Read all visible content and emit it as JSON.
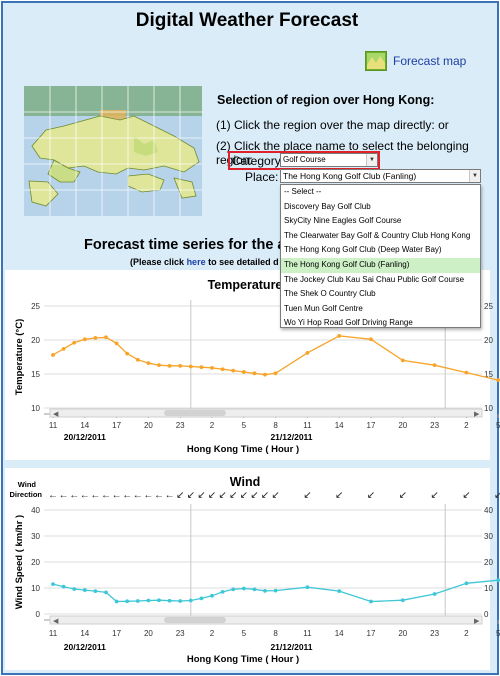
{
  "page": {
    "title": "Digital Weather Forecast",
    "forecast_map_label": "Forecast map"
  },
  "selection": {
    "heading": "Selection of region over Hong Kong:",
    "instruction_1": "(1) Click the region over the map directly: or",
    "instruction_2": "(2) Click the place name to select the belonging region:",
    "category_label": "Category:",
    "category_value": "Golf Course",
    "place_label": "Place:",
    "place_value": "The Hong Kong Golf Club (Fanling)",
    "place_options": [
      "-- Select --",
      "Discovery Bay Golf Club",
      "SkyCity Nine Eagles Golf Course",
      "The Clearwater Bay Golf & Country Club Hong Kong",
      "The Hong Kong Golf Club (Deep Water Bay)",
      "The Hong Kong Golf Club (Fanling)",
      "The Jockey Club Kau Sai Chau Public Golf Course",
      "The Shek O Country Club",
      "Tuen Mun Golf Centre",
      "Wo Yi Hop Road Golf Driving Range"
    ],
    "place_selected_index": 5
  },
  "section": {
    "title": "Forecast time series for the a",
    "note_before": "(Please click",
    "note_link": "here",
    "note_after": "to see detailed d"
  },
  "colors": {
    "temperature_series": "#f7a428",
    "wind_series": "#3ec7d6",
    "category_highlight": "#e0202a",
    "selected_option": "#cdf0c6"
  },
  "chart_data": [
    {
      "type": "line",
      "title": "Temperature",
      "ylabel": "Temperature (°C)",
      "xlabel": "Hong Kong Time ( Hour )",
      "ylim": [
        10,
        25
      ],
      "yticks": [
        10,
        15,
        20,
        25
      ],
      "grid": true,
      "x_tick_labels": [
        "11",
        "14",
        "17",
        "20",
        "23",
        "2",
        "5",
        "8",
        "11",
        "14",
        "17",
        "20",
        "23",
        "2",
        "5"
      ],
      "date_labels": [
        "20/12/2011",
        "21/12/2011"
      ],
      "series": [
        {
          "x": [
            11,
            12,
            13,
            14,
            15,
            16,
            17,
            18,
            19,
            20,
            21,
            22,
            23,
            24,
            25,
            26,
            27,
            28,
            29,
            30,
            31,
            32,
            35,
            38,
            41,
            44,
            47,
            50,
            53
          ],
          "values": [
            17.8,
            18.7,
            19.6,
            20.1,
            20.3,
            20.4,
            19.5,
            18.0,
            17.1,
            16.6,
            16.3,
            16.2,
            16.2,
            16.1,
            16.0,
            15.9,
            15.7,
            15.5,
            15.3,
            15.1,
            14.9,
            15.1,
            18.1,
            20.6,
            20.1,
            17.0,
            16.3,
            15.2,
            14.1
          ]
        }
      ]
    },
    {
      "type": "line",
      "title": "Wind",
      "ylabel": "Wind Speed ( km/hr )",
      "xlabel": "Hong Kong Time ( Hour )",
      "ylim": [
        0,
        40
      ],
      "yticks": [
        0,
        10,
        20,
        30,
        40
      ],
      "grid": true,
      "x_tick_labels": [
        "11",
        "14",
        "17",
        "20",
        "23",
        "2",
        "5",
        "8",
        "11",
        "14",
        "17",
        "20",
        "23",
        "2",
        "5"
      ],
      "date_labels": [
        "20/12/2011",
        "21/12/2011"
      ],
      "direction_label_1": "Wind",
      "direction_label_2": "Direction",
      "arrow_glyph": "↙",
      "series": [
        {
          "x": [
            11,
            12,
            13,
            14,
            15,
            16,
            17,
            18,
            19,
            20,
            21,
            22,
            23,
            24,
            25,
            26,
            27,
            28,
            29,
            30,
            31,
            32,
            35,
            38,
            41,
            44,
            47,
            50,
            53
          ],
          "values": [
            11.5,
            10.5,
            9.6,
            9.2,
            8.8,
            8.3,
            4.8,
            4.9,
            5.0,
            5.2,
            5.3,
            5.1,
            5.0,
            5.2,
            6.0,
            7.0,
            8.5,
            9.5,
            9.8,
            9.5,
            8.9,
            9.0,
            10.3,
            8.8,
            4.8,
            5.3,
            7.7,
            11.8,
            13.0
          ]
        }
      ]
    }
  ]
}
